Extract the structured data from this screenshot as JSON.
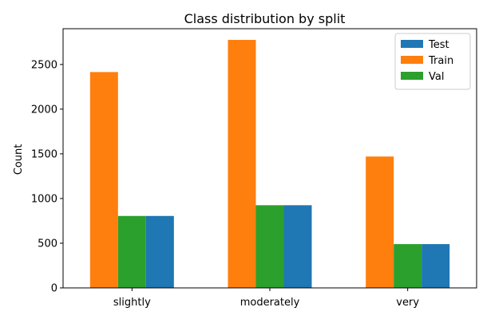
{
  "chart_data": {
    "type": "bar",
    "title": "Class distribution by split",
    "xlabel": "",
    "ylabel": "Count",
    "categories": [
      "slightly",
      "moderately",
      "very"
    ],
    "series": [
      {
        "name": "Train",
        "color": "#ff7f0e",
        "values": [
          2415,
          2775,
          1470
        ]
      },
      {
        "name": "Val",
        "color": "#2ca02c",
        "values": [
          805,
          925,
          490
        ]
      },
      {
        "name": "Test",
        "color": "#1f77b4",
        "values": [
          805,
          925,
          490
        ]
      }
    ],
    "legend_order": [
      "Test",
      "Train",
      "Val"
    ],
    "legend_position": "top-right",
    "ylim": [
      0,
      2900
    ],
    "yticks": [
      0,
      500,
      1000,
      1500,
      2000,
      2500
    ],
    "grid": false
  }
}
